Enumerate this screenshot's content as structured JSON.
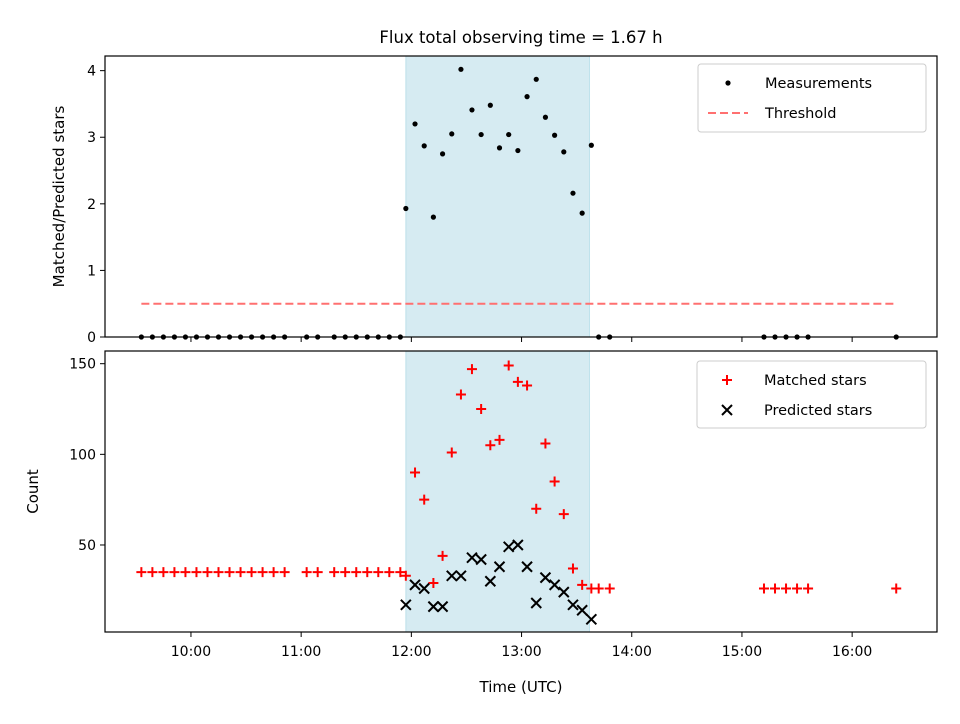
{
  "figure": {
    "title": "Flux total observing time = 1.67 h"
  },
  "chart_data": [
    {
      "type": "scatter",
      "ylabel": "Matched/Predicted stars",
      "xlabel": "",
      "ylim": [
        0,
        4.22
      ],
      "yticks": [
        0,
        1,
        2,
        3,
        4
      ],
      "xticks_time": [
        "10:00",
        "11:00",
        "12:00",
        "13:00",
        "14:00",
        "15:00",
        "16:00"
      ],
      "xlim_hours": [
        9.22,
        16.77
      ],
      "legend_position": "top-right",
      "legend": [
        "Measurements",
        "Threshold"
      ],
      "highlight_span": {
        "start": "11:57",
        "end": "13:37",
        "color": "#add8e6"
      },
      "series": [
        {
          "name": "Measurements",
          "marker": "dot",
          "color": "#000000",
          "points": [
            [
              "09:33",
              0
            ],
            [
              "09:39",
              0
            ],
            [
              "09:45",
              0
            ],
            [
              "09:51",
              0
            ],
            [
              "09:57",
              0
            ],
            [
              "10:03",
              0
            ],
            [
              "10:09",
              0
            ],
            [
              "10:15",
              0
            ],
            [
              "10:21",
              0
            ],
            [
              "10:27",
              0
            ],
            [
              "10:33",
              0
            ],
            [
              "10:39",
              0
            ],
            [
              "10:45",
              0
            ],
            [
              "10:51",
              0
            ],
            [
              "11:03",
              0
            ],
            [
              "11:09",
              0
            ],
            [
              "11:18",
              0
            ],
            [
              "11:24",
              0
            ],
            [
              "11:30",
              0
            ],
            [
              "11:36",
              0
            ],
            [
              "11:42",
              0
            ],
            [
              "11:48",
              0
            ],
            [
              "11:54",
              0
            ],
            [
              "11:57",
              1.93
            ],
            [
              "12:02",
              3.2
            ],
            [
              "12:07",
              2.87
            ],
            [
              "12:12",
              1.8
            ],
            [
              "12:17",
              2.75
            ],
            [
              "12:22",
              3.05
            ],
            [
              "12:27",
              4.02
            ],
            [
              "12:33",
              3.41
            ],
            [
              "12:38",
              3.04
            ],
            [
              "12:43",
              3.48
            ],
            [
              "12:48",
              2.84
            ],
            [
              "12:53",
              3.04
            ],
            [
              "12:58",
              2.8
            ],
            [
              "13:03",
              3.61
            ],
            [
              "13:08",
              3.87
            ],
            [
              "13:13",
              3.3
            ],
            [
              "13:18",
              3.03
            ],
            [
              "13:23",
              2.78
            ],
            [
              "13:28",
              2.16
            ],
            [
              "13:33",
              1.86
            ],
            [
              "13:38",
              2.88
            ],
            [
              "13:42",
              0
            ],
            [
              "13:48",
              0
            ],
            [
              "15:12",
              0
            ],
            [
              "15:18",
              0
            ],
            [
              "15:24",
              0
            ],
            [
              "15:30",
              0
            ],
            [
              "15:36",
              0
            ],
            [
              "16:24",
              0
            ]
          ]
        },
        {
          "name": "Threshold",
          "marker": "dashed-line",
          "color": "#ff7070",
          "points": [
            [
              "09:33",
              0.5
            ],
            [
              "16:24",
              0.5
            ]
          ]
        }
      ]
    },
    {
      "type": "scatter",
      "ylabel": "Count",
      "xlabel": "Time (UTC)",
      "ylim": [
        2,
        157
      ],
      "yticks": [
        50,
        100,
        150
      ],
      "xticks_time": [
        "10:00",
        "11:00",
        "12:00",
        "13:00",
        "14:00",
        "15:00",
        "16:00"
      ],
      "xlim_hours": [
        9.22,
        16.77
      ],
      "legend_position": "top-right",
      "legend": [
        "Matched stars",
        "Predicted stars"
      ],
      "highlight_span": {
        "start": "11:57",
        "end": "13:37",
        "color": "#add8e6"
      },
      "series": [
        {
          "name": "Matched stars",
          "marker": "plus",
          "color": "#ff0000",
          "points": [
            [
              "09:33",
              35
            ],
            [
              "09:39",
              35
            ],
            [
              "09:45",
              35
            ],
            [
              "09:51",
              35
            ],
            [
              "09:57",
              35
            ],
            [
              "10:03",
              35
            ],
            [
              "10:09",
              35
            ],
            [
              "10:15",
              35
            ],
            [
              "10:21",
              35
            ],
            [
              "10:27",
              35
            ],
            [
              "10:33",
              35
            ],
            [
              "10:39",
              35
            ],
            [
              "10:45",
              35
            ],
            [
              "10:51",
              35
            ],
            [
              "11:03",
              35
            ],
            [
              "11:09",
              35
            ],
            [
              "11:18",
              35
            ],
            [
              "11:24",
              35
            ],
            [
              "11:30",
              35
            ],
            [
              "11:36",
              35
            ],
            [
              "11:42",
              35
            ],
            [
              "11:48",
              35
            ],
            [
              "11:54",
              35
            ],
            [
              "11:57",
              33
            ],
            [
              "12:02",
              90
            ],
            [
              "12:07",
              75
            ],
            [
              "12:12",
              29
            ],
            [
              "12:17",
              44
            ],
            [
              "12:22",
              101
            ],
            [
              "12:27",
              133
            ],
            [
              "12:33",
              147
            ],
            [
              "12:38",
              125
            ],
            [
              "12:43",
              105
            ],
            [
              "12:48",
              108
            ],
            [
              "12:53",
              149
            ],
            [
              "12:58",
              140
            ],
            [
              "13:03",
              138
            ],
            [
              "13:08",
              70
            ],
            [
              "13:13",
              106
            ],
            [
              "13:18",
              85
            ],
            [
              "13:23",
              67
            ],
            [
              "13:28",
              37
            ],
            [
              "13:33",
              28
            ],
            [
              "13:38",
              26
            ],
            [
              "13:42",
              26
            ],
            [
              "13:48",
              26
            ],
            [
              "15:12",
              26
            ],
            [
              "15:18",
              26
            ],
            [
              "15:24",
              26
            ],
            [
              "15:30",
              26
            ],
            [
              "15:36",
              26
            ],
            [
              "16:24",
              26
            ]
          ]
        },
        {
          "name": "Predicted stars",
          "marker": "x",
          "color": "#000000",
          "points": [
            [
              "11:57",
              17
            ],
            [
              "12:02",
              28
            ],
            [
              "12:07",
              26
            ],
            [
              "12:12",
              16
            ],
            [
              "12:17",
              16
            ],
            [
              "12:22",
              33
            ],
            [
              "12:27",
              33
            ],
            [
              "12:33",
              43
            ],
            [
              "12:38",
              42
            ],
            [
              "12:43",
              30
            ],
            [
              "12:48",
              38
            ],
            [
              "12:53",
              49
            ],
            [
              "12:58",
              50
            ],
            [
              "13:03",
              38
            ],
            [
              "13:08",
              18
            ],
            [
              "13:13",
              32
            ],
            [
              "13:18",
              28
            ],
            [
              "13:23",
              24
            ],
            [
              "13:28",
              17
            ],
            [
              "13:33",
              14
            ],
            [
              "13:38",
              9
            ]
          ]
        }
      ]
    }
  ]
}
